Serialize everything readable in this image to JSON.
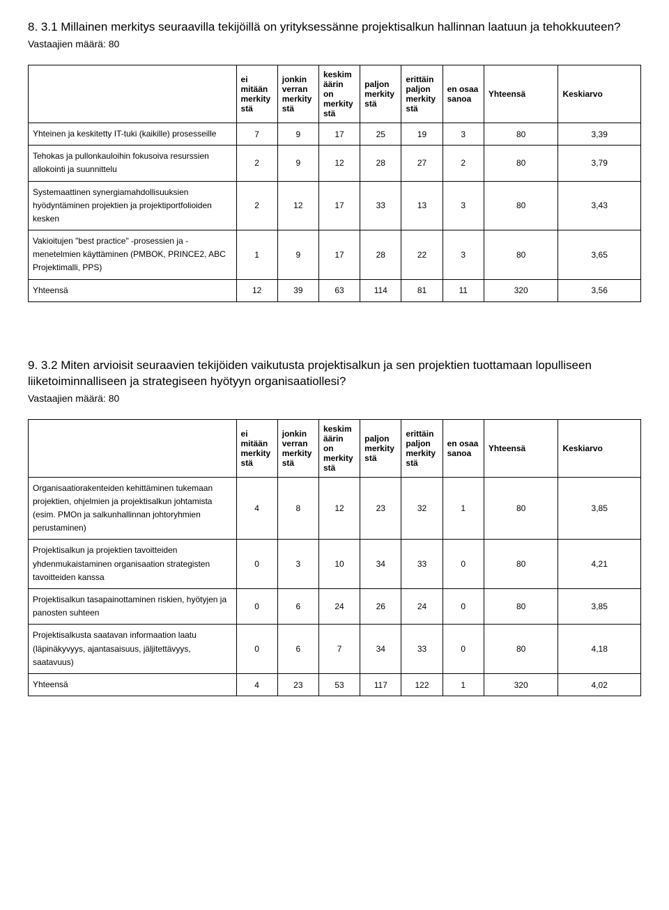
{
  "section1": {
    "heading": "8. 3.1 Millainen merkitys seuraavilla tekijöillä on yrityksessänne projektisalkun hallinnan laatuun ja tehokkuuteen?",
    "respondents": "Vastaajien määrä: 80",
    "headers": {
      "blank": "",
      "c1": "ei mitään merkity stä",
      "c2": "jonkin verran merkity stä",
      "c3": "keskim äärin on merkity stä",
      "c4": "paljon merkity stä",
      "c5": "erittäin paljon merkity stä",
      "c6": "en osaa sanoa",
      "c7": "Yhteensä",
      "c8": "Keskiarvo"
    },
    "rows": [
      {
        "label": "Yhteinen ja keskitetty IT-tuki (kaikille) prosesseille",
        "v": [
          "7",
          "9",
          "17",
          "25",
          "19",
          "3",
          "80",
          "3,39"
        ]
      },
      {
        "label": "Tehokas ja pullonkauloihin fokusoiva resurssien allokointi ja suunnittelu",
        "v": [
          "2",
          "9",
          "12",
          "28",
          "27",
          "2",
          "80",
          "3,79"
        ]
      },
      {
        "label": "Systemaattinen synergiamahdollisuuksien hyödyntäminen projektien ja projektiportfolioiden kesken",
        "v": [
          "2",
          "12",
          "17",
          "33",
          "13",
          "3",
          "80",
          "3,43"
        ]
      },
      {
        "label": "Vakioitujen \"best practice\" -prosessien ja -menetelmien käyttäminen (PMBOK, PRINCE2, ABC Projektimalli, PPS)",
        "v": [
          "1",
          "9",
          "17",
          "28",
          "22",
          "3",
          "80",
          "3,65"
        ]
      },
      {
        "label": "Yhteensä",
        "v": [
          "12",
          "39",
          "63",
          "114",
          "81",
          "11",
          "320",
          "3,56"
        ]
      }
    ]
  },
  "section2": {
    "heading": "9. 3.2 Miten arvioisit seuraavien tekijöiden vaikutusta projektisalkun ja sen projektien tuottamaan lopulliseen liiketoiminnalliseen ja strategiseen hyötyyn organisaatiollesi?",
    "respondents": "Vastaajien määrä: 80",
    "headers": {
      "blank": "",
      "c1": "ei mitään merkity stä",
      "c2": "jonkin verran merkity stä",
      "c3": "keskim äärin on merkity stä",
      "c4": "paljon merkity stä",
      "c5": "erittäin paljon merkity stä",
      "c6": "en osaa sanoa",
      "c7": "Yhteensä",
      "c8": "Keskiarvo"
    },
    "rows": [
      {
        "label": "Organisaatiorakenteiden kehittäminen tukemaan projektien, ohjelmien ja projektisalkun johtamista (esim. PMOn ja salkunhallinnan johtoryhmien perustaminen)",
        "v": [
          "4",
          "8",
          "12",
          "23",
          "32",
          "1",
          "80",
          "3,85"
        ]
      },
      {
        "label": "Projektisalkun ja projektien tavoitteiden yhdenmukaistaminen organisaation strategisten tavoitteiden kanssa",
        "v": [
          "0",
          "3",
          "10",
          "34",
          "33",
          "0",
          "80",
          "4,21"
        ]
      },
      {
        "label": "Projektisalkun tasapainottaminen riskien, hyötyjen ja panosten suhteen",
        "v": [
          "0",
          "6",
          "24",
          "26",
          "24",
          "0",
          "80",
          "3,85"
        ]
      },
      {
        "label": "Projektisalkusta saatavan informaation laatu (läpinäkyvyys, ajantasaisuus, jäljitettävyys, saatavuus)",
        "v": [
          "0",
          "6",
          "7",
          "34",
          "33",
          "0",
          "80",
          "4,18"
        ]
      },
      {
        "label": "Yhteensä",
        "v": [
          "4",
          "23",
          "53",
          "117",
          "122",
          "1",
          "320",
          "4,02"
        ]
      }
    ]
  }
}
